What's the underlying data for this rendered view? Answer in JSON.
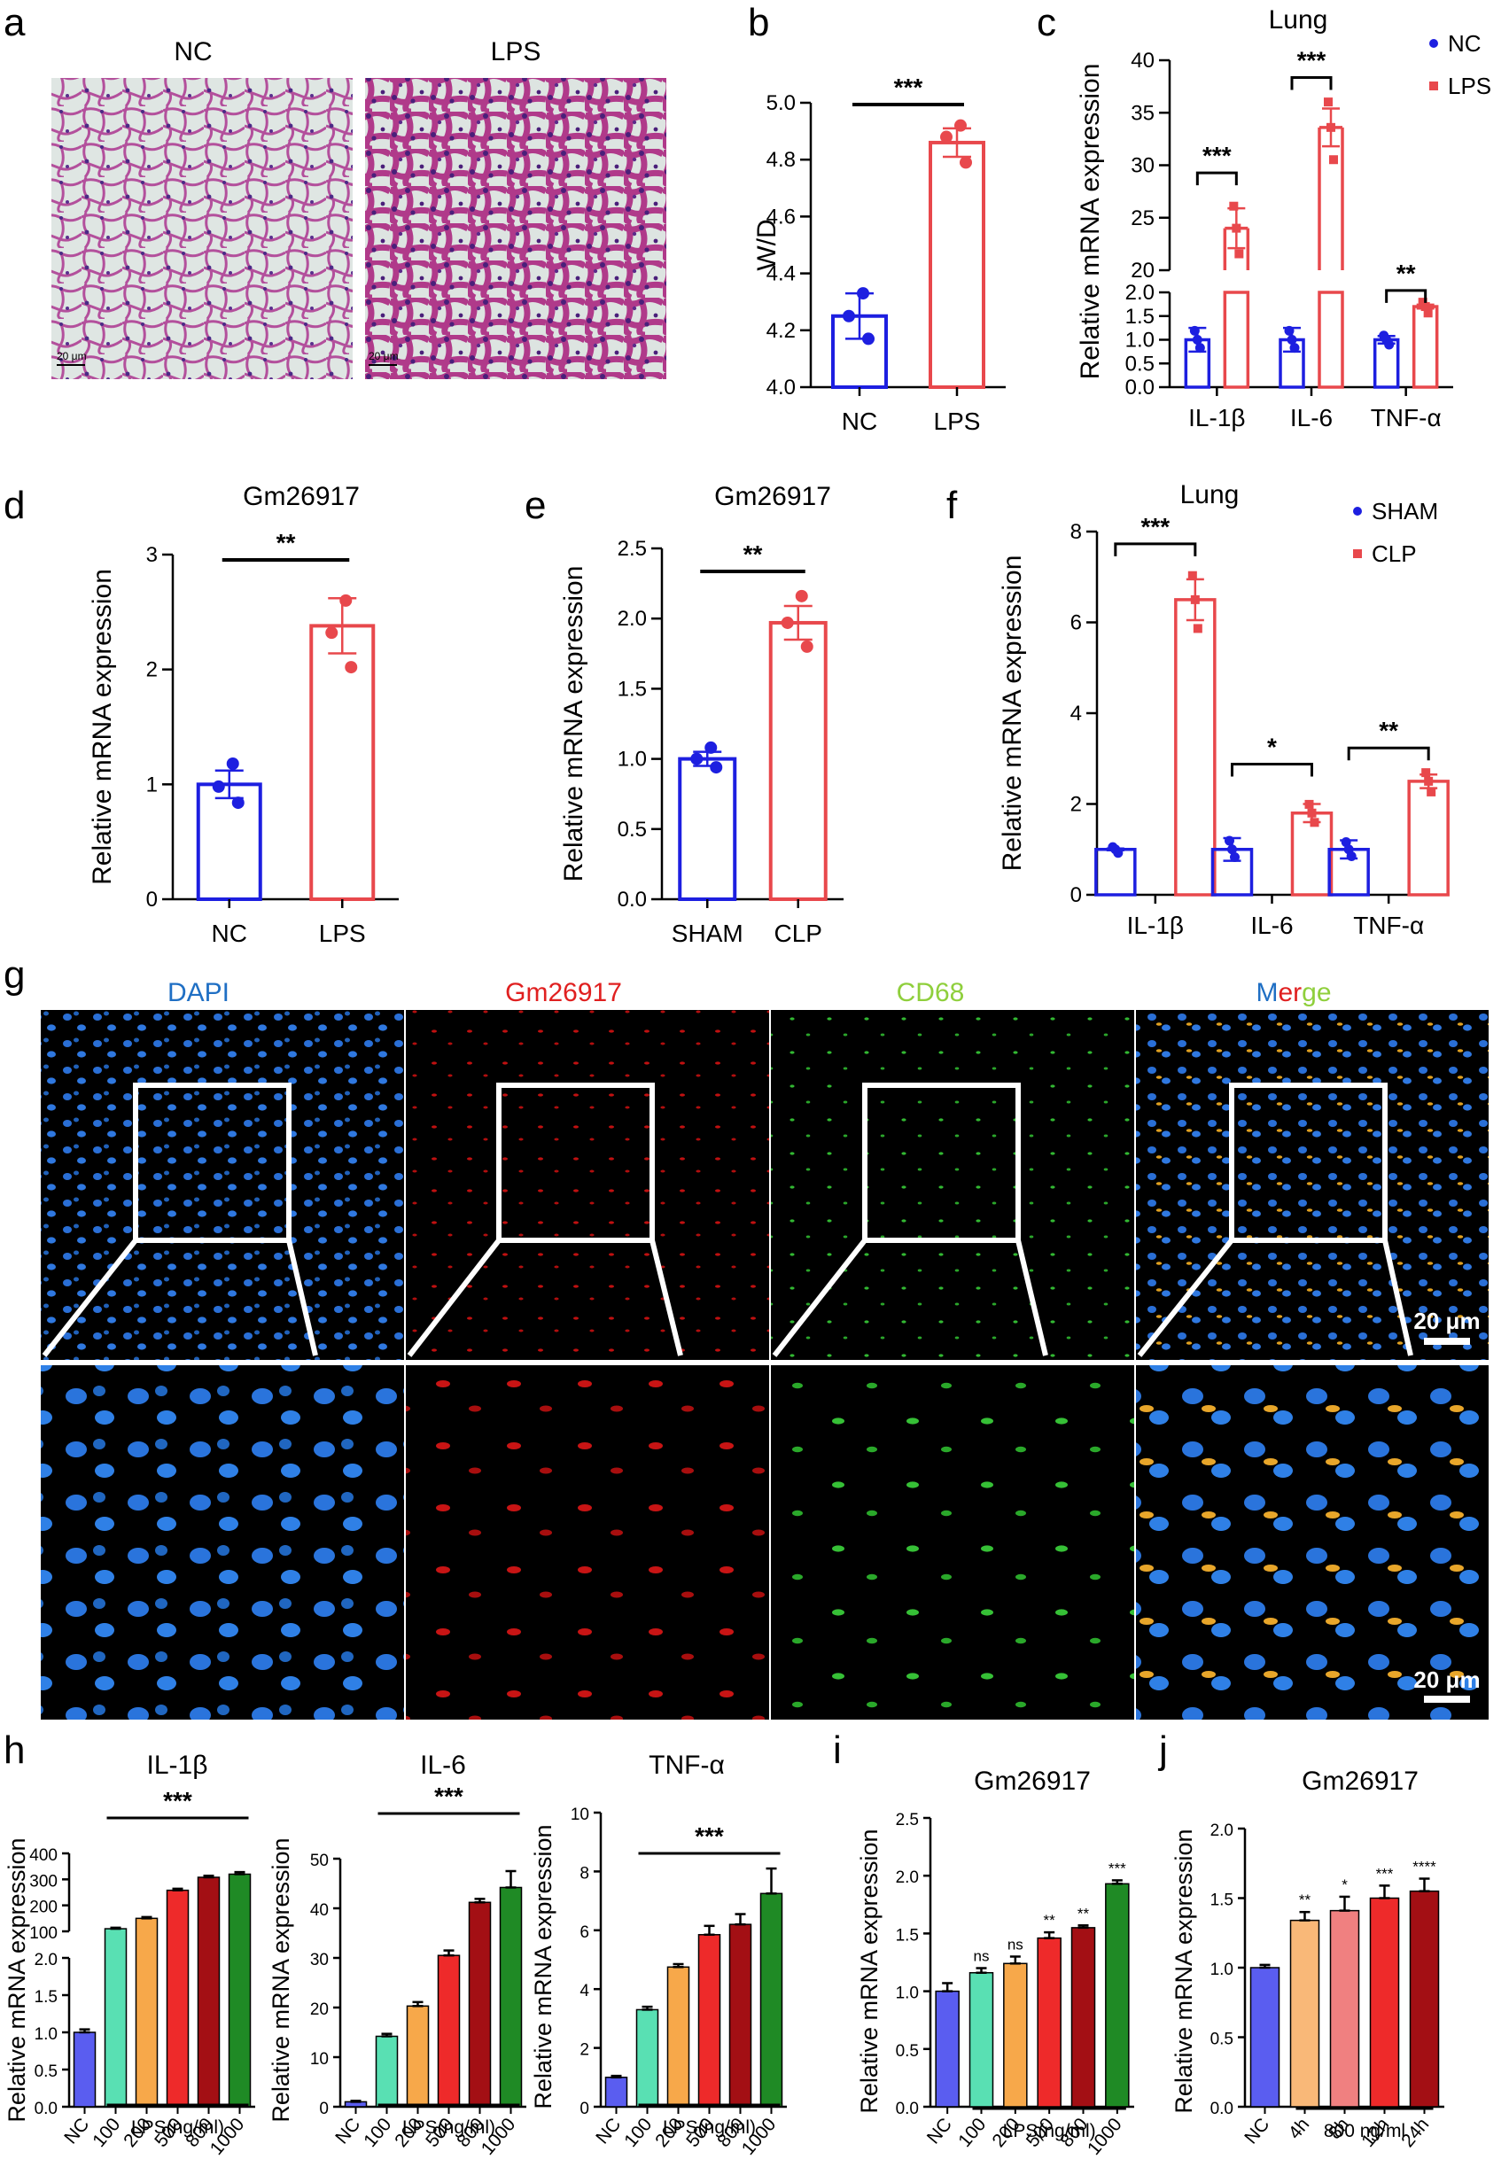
{
  "panel_letters": {
    "a": "a",
    "b": "b",
    "c": "c",
    "d": "d",
    "e": "e",
    "f": "f",
    "g": "g",
    "h": "h",
    "i": "i",
    "j": "j"
  },
  "histology": {
    "nc_label": "NC",
    "lps_label": "LPS",
    "scale_nc": "20 μm",
    "scale_lps": "20 μm"
  },
  "if_panel": {
    "channels": [
      {
        "label": "DAPI",
        "color": "#1f6fc4"
      },
      {
        "label": "Gm26917",
        "color": "#e02020"
      },
      {
        "label": "CD68",
        "color": "#8fcf3c"
      }
    ],
    "merge": [
      {
        "text": "M",
        "color": "#1f6fc4"
      },
      {
        "text": "er",
        "color": "#e02020"
      },
      {
        "text": "ge",
        "color": "#8fcf3c"
      }
    ],
    "scale_top": "20 μm",
    "scale_bottom": "20 μm"
  },
  "colors": {
    "blue": "#1d1fe0",
    "red": "#e8484c"
  },
  "chart_data": [
    {
      "id": "b",
      "type": "bar",
      "title": "",
      "ylabel": "W/D",
      "categories": [
        "NC",
        "LPS"
      ],
      "values": [
        4.25,
        4.86
      ],
      "errors": [
        0.08,
        0.05
      ],
      "points": [
        [
          4.33,
          4.25,
          4.17
        ],
        [
          4.92,
          4.88,
          4.79
        ]
      ],
      "ylim": [
        4.0,
        5.0
      ],
      "yticks": [
        "4.0",
        "4.2",
        "4.4",
        "4.6",
        "4.8",
        "5.0"
      ],
      "significance": [
        {
          "label": "***",
          "from": 0,
          "to": 1
        }
      ]
    },
    {
      "id": "c",
      "type": "bar",
      "title": "Lung",
      "ylabel": "Relative mRNA expression",
      "categories": [
        "IL-1β",
        "IL-6",
        "TNF-α"
      ],
      "legend": [
        "NC",
        "LPS"
      ],
      "series": [
        {
          "name": "NC",
          "values": [
            1.0,
            1.0,
            1.0
          ],
          "errors": [
            0.25,
            0.25,
            0.08
          ]
        },
        {
          "name": "LPS",
          "values": [
            24,
            33.6,
            1.7
          ],
          "errors": [
            1.9,
            1.8,
            0.04
          ]
        }
      ],
      "ylim_lower": [
        0,
        2.0
      ],
      "ylim_upper": [
        20,
        40
      ],
      "yticks_lower": [
        "0.0",
        "0.5",
        "1.0",
        "1.5",
        "2.0"
      ],
      "yticks_upper": [
        "20",
        "25",
        "30",
        "35",
        "40"
      ],
      "significance": [
        "***",
        "***",
        "**"
      ]
    },
    {
      "id": "d",
      "type": "bar",
      "title": "Gm26917",
      "ylabel": "Relative mRNA expression",
      "categories": [
        "NC",
        "LPS"
      ],
      "values": [
        1.0,
        2.38
      ],
      "errors": [
        0.12,
        0.24
      ],
      "points": [
        [
          1.18,
          0.98,
          0.84
        ],
        [
          2.6,
          2.32,
          2.02
        ]
      ],
      "ylim": [
        0,
        3
      ],
      "yticks": [
        "0",
        "1",
        "2",
        "3"
      ],
      "significance": [
        {
          "label": "**",
          "from": 0,
          "to": 1
        }
      ]
    },
    {
      "id": "e",
      "type": "bar",
      "title": "Gm26917",
      "ylabel": "Relative mRNA expression",
      "categories": [
        "SHAM",
        "CLP"
      ],
      "values": [
        1.0,
        1.97
      ],
      "errors": [
        0.05,
        0.12
      ],
      "points": [
        [
          1.08,
          1.0,
          0.94
        ],
        [
          2.16,
          1.97,
          1.8
        ]
      ],
      "ylim": [
        0,
        2.5
      ],
      "yticks": [
        "0.0",
        "0.5",
        "1.0",
        "1.5",
        "2.0",
        "2.5"
      ],
      "significance": [
        {
          "label": "**",
          "from": 0,
          "to": 1
        }
      ]
    },
    {
      "id": "f",
      "type": "bar",
      "title": "Lung",
      "ylabel": "Relative mRNA expression",
      "categories": [
        "IL-1β",
        "IL-6",
        "TNF-α"
      ],
      "legend": [
        "SHAM",
        "CLP"
      ],
      "series": [
        {
          "name": "SHAM",
          "values": [
            1.0,
            1.0,
            1.0
          ],
          "errors": [
            0.02,
            0.25,
            0.2
          ]
        },
        {
          "name": "CLP",
          "values": [
            6.5,
            1.8,
            2.5
          ],
          "errors": [
            0.45,
            0.2,
            0.15
          ]
        }
      ],
      "ylim": [
        0,
        8
      ],
      "yticks": [
        "0",
        "2",
        "4",
        "6",
        "8"
      ],
      "significance": [
        "***",
        "*",
        "**"
      ]
    },
    {
      "id": "h1",
      "type": "bar",
      "title": "IL-1β",
      "ylabel": "Relative mRNA expression",
      "xlabel": "LPS(ng/ml)",
      "categories": [
        "NC",
        "100",
        "200",
        "500",
        "800",
        "1000"
      ],
      "values": [
        1.0,
        110,
        150,
        258,
        308,
        320
      ],
      "errors": [
        0.04,
        4,
        5,
        6,
        6,
        8
      ],
      "ylim_lower": [
        0,
        2.0
      ],
      "ylim_upper": [
        100,
        400
      ],
      "yticks_lower": [
        "0.0",
        "0.5",
        "1.0",
        "1.5",
        "2.0"
      ],
      "yticks_upper": [
        "100",
        "200",
        "300",
        "400"
      ],
      "significance": [
        {
          "label": "***",
          "from": 1,
          "to": 5
        }
      ]
    },
    {
      "id": "h2",
      "type": "bar",
      "title": "IL-6",
      "ylabel": "Relative mRNA expression",
      "xlabel": "LPS(ng/ml)",
      "categories": [
        "NC",
        "100",
        "200",
        "500",
        "800",
        "1000"
      ],
      "values": [
        1.0,
        14.2,
        20.3,
        30.5,
        41.2,
        44.2
      ],
      "errors": [
        0.2,
        0.5,
        0.8,
        1.0,
        0.7,
        3.3
      ],
      "ylim": [
        0,
        50
      ],
      "yticks": [
        "0",
        "10",
        "20",
        "30",
        "40",
        "50"
      ],
      "significance": [
        {
          "label": "***",
          "from": 1,
          "to": 5
        }
      ]
    },
    {
      "id": "h3",
      "type": "bar",
      "title": "TNF-α",
      "ylabel": "Relative mRNA expression",
      "xlabel": "LPS(ng/ml)",
      "categories": [
        "NC",
        "100",
        "200",
        "500",
        "800",
        "1000"
      ],
      "values": [
        1.0,
        3.3,
        4.75,
        5.85,
        6.2,
        7.25
      ],
      "errors": [
        0.05,
        0.1,
        0.1,
        0.3,
        0.35,
        0.85
      ],
      "ylim": [
        0,
        10
      ],
      "yticks": [
        "0",
        "2",
        "4",
        "6",
        "8",
        "10"
      ],
      "significance": [
        {
          "label": "***",
          "from": 1,
          "to": 5
        }
      ]
    },
    {
      "id": "i",
      "type": "bar",
      "title": "Gm26917",
      "ylabel": "Relative mRNA expression",
      "xlabel": "LPS(ng/ml)",
      "categories": [
        "NC",
        "100",
        "200",
        "500",
        "800",
        "1000"
      ],
      "values": [
        1.0,
        1.16,
        1.24,
        1.46,
        1.55,
        1.93
      ],
      "errors": [
        0.07,
        0.04,
        0.06,
        0.05,
        0.02,
        0.03
      ],
      "ylim": [
        0,
        2.5
      ],
      "yticks": [
        "0.0",
        "0.5",
        "1.0",
        "1.5",
        "2.0",
        "2.5"
      ],
      "bar_labels": [
        "",
        "ns",
        "ns",
        "**",
        "**",
        "***"
      ]
    },
    {
      "id": "j",
      "type": "bar",
      "title": "Gm26917",
      "ylabel": "Relative mRNA expression",
      "xlabel": "800 ng/ml",
      "categories": [
        "NC",
        "4h",
        "8h",
        "12h",
        "24h"
      ],
      "values": [
        1.0,
        1.34,
        1.41,
        1.5,
        1.55
      ],
      "errors": [
        0.02,
        0.06,
        0.1,
        0.09,
        0.09
      ],
      "ylim": [
        0,
        2.0
      ],
      "yticks": [
        "0.0",
        "0.5",
        "1.0",
        "1.5",
        "2.0"
      ],
      "bar_labels": [
        "",
        "**",
        "*",
        "***",
        "****"
      ]
    }
  ]
}
